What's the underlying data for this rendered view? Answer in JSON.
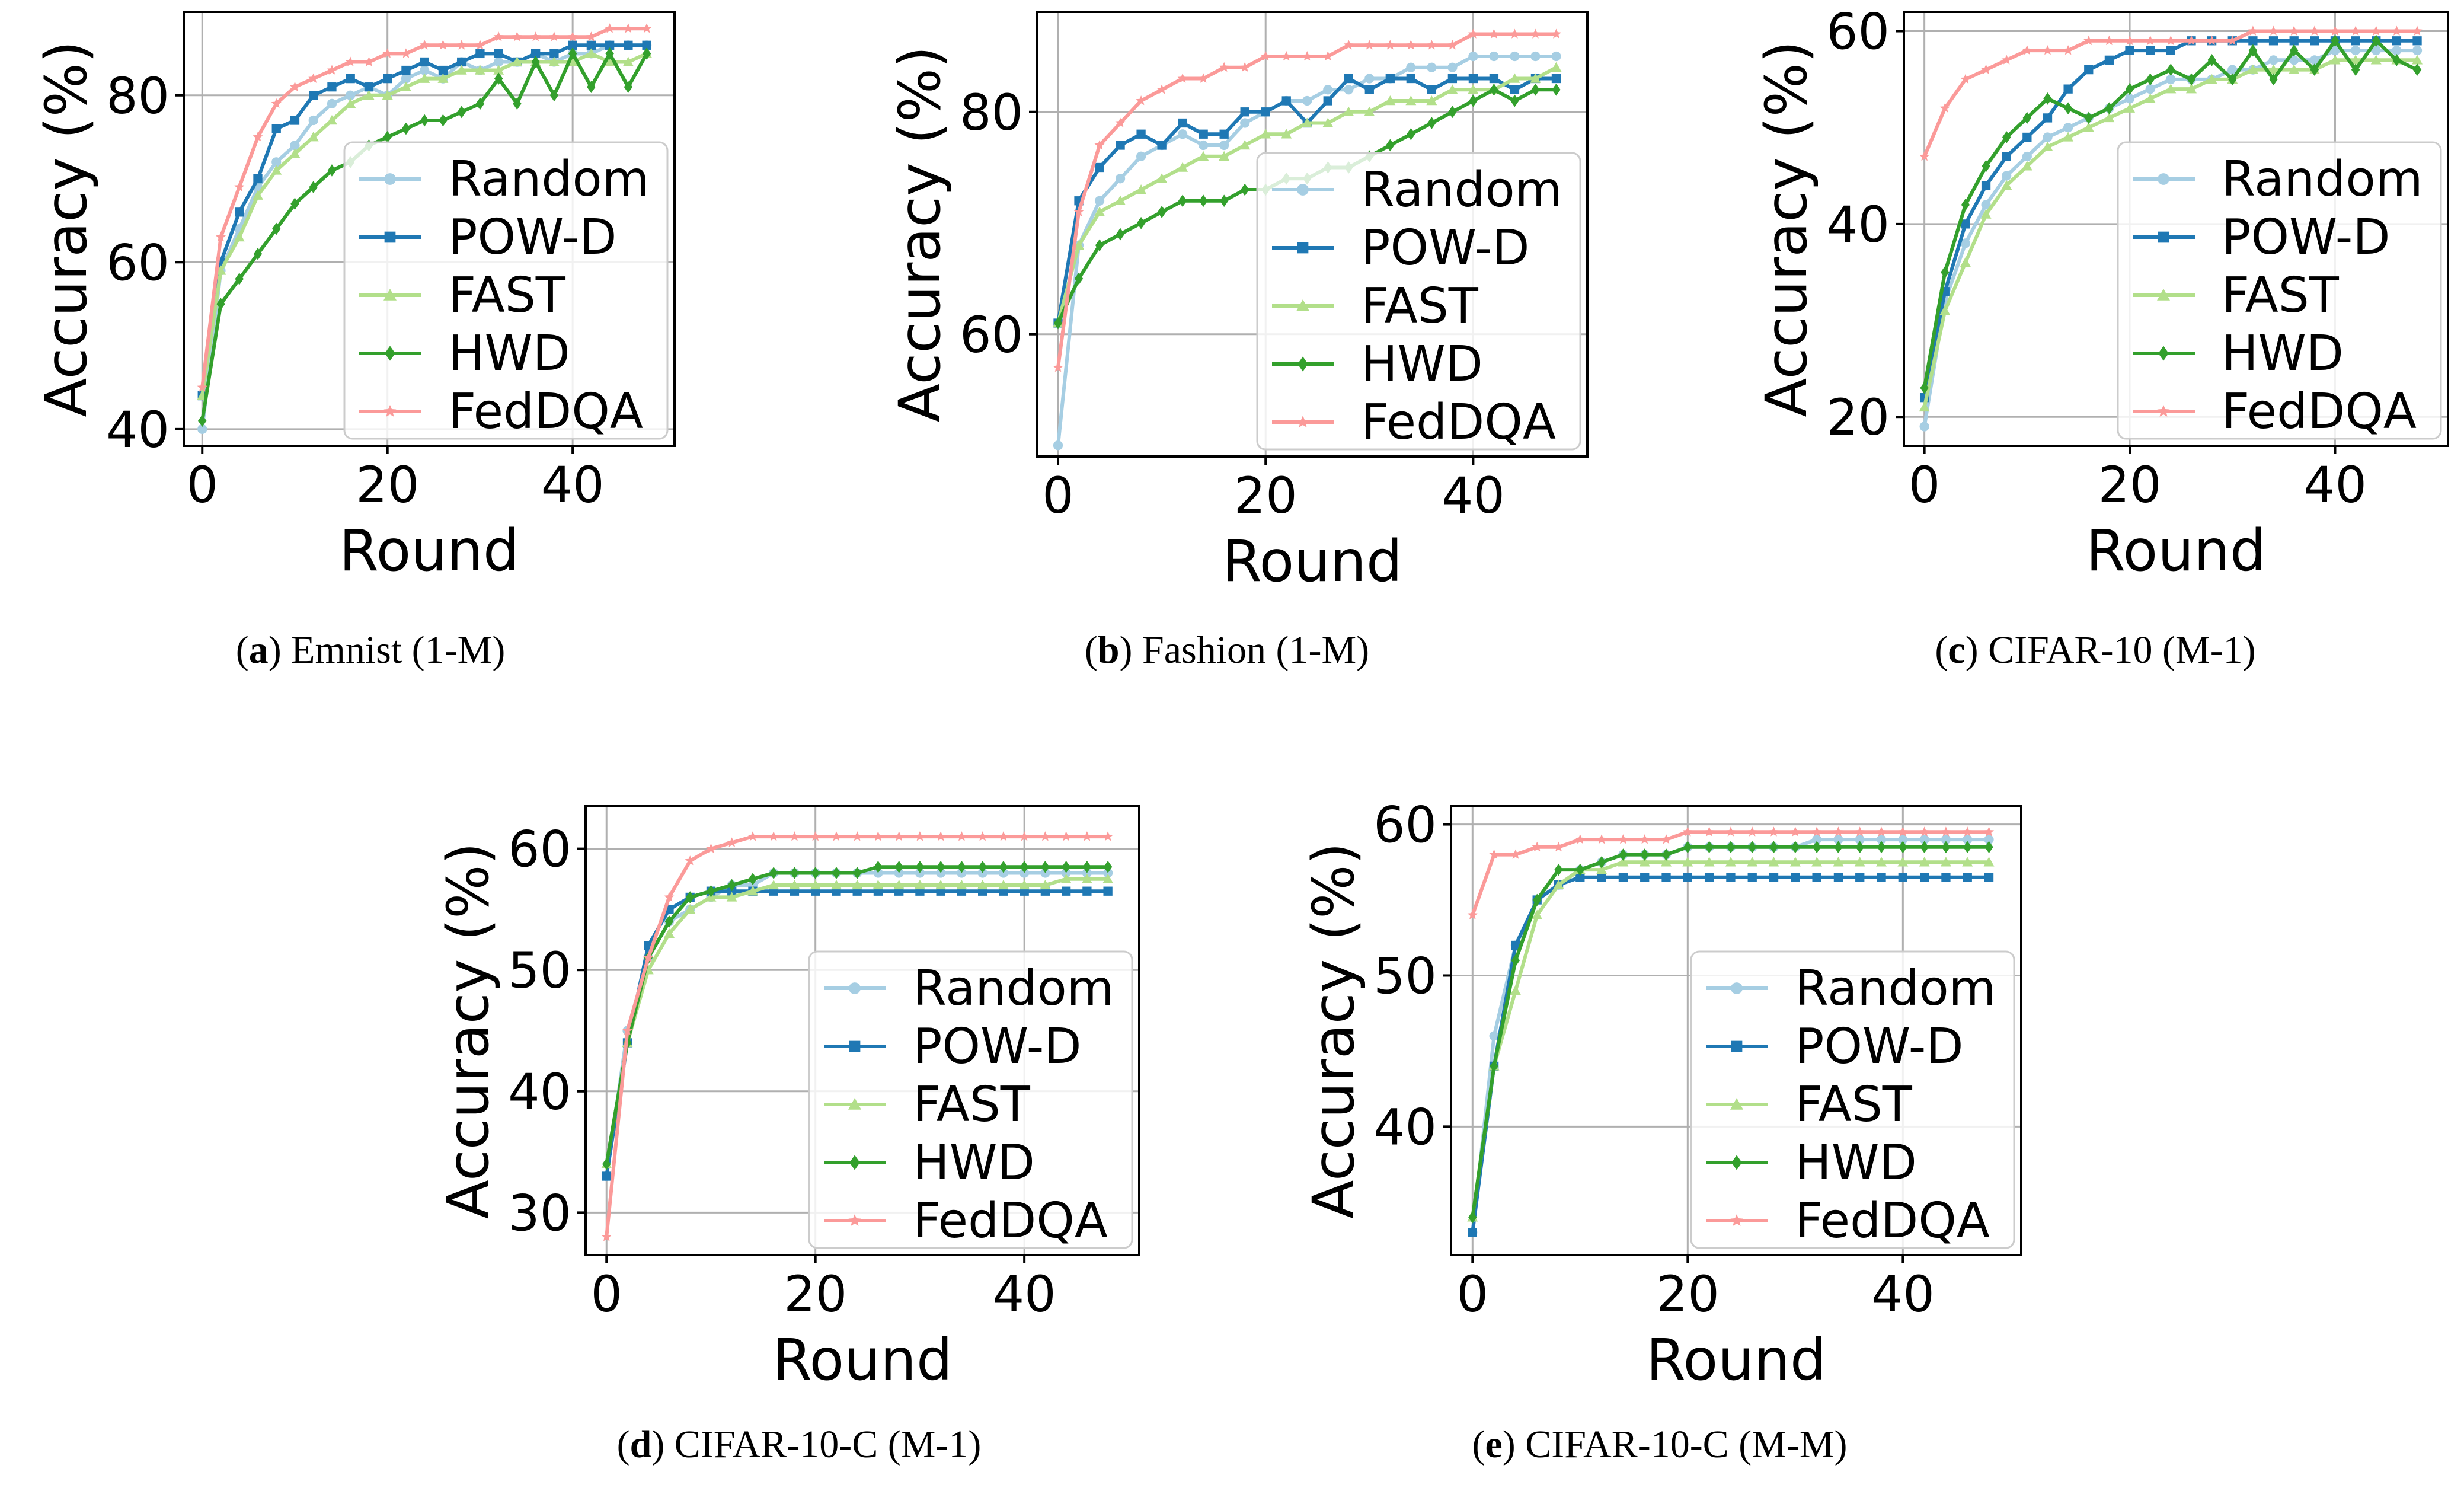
{
  "figure": {
    "colors": {
      "Random": "#a6cee3",
      "POW-D": "#1f78b4",
      "FAST": "#b2df8a",
      "HWD": "#33a02c",
      "FedDQA": "#fb9a99"
    }
  },
  "chart_data": [
    {
      "type": "line",
      "caption_letter": "a",
      "caption_text": "Emnist (1-M)",
      "xlabel": "Round",
      "ylabel": "Accuracy (%)",
      "xlim": [
        -2,
        51
      ],
      "ylim": [
        38,
        90
      ],
      "xticks": [
        0,
        20,
        40
      ],
      "yticks": [
        40,
        60,
        80
      ],
      "x": [
        0,
        2,
        4,
        6,
        8,
        10,
        12,
        14,
        16,
        18,
        20,
        22,
        24,
        26,
        28,
        30,
        32,
        34,
        36,
        38,
        40,
        42,
        44,
        46,
        48
      ],
      "series": [
        {
          "name": "Random",
          "marker": "circle",
          "values": [
            40,
            59,
            64,
            69,
            72,
            74,
            77,
            79,
            80,
            81,
            80,
            82,
            83,
            82,
            84,
            83,
            84,
            84,
            85,
            84,
            85,
            85,
            86,
            86,
            86
          ]
        },
        {
          "name": "POW-D",
          "marker": "square",
          "values": [
            44,
            60,
            66,
            70,
            76,
            77,
            80,
            81,
            82,
            81,
            82,
            83,
            84,
            83,
            84,
            85,
            85,
            84,
            85,
            85,
            86,
            86,
            86,
            86,
            86
          ]
        },
        {
          "name": "FAST",
          "marker": "triangle",
          "values": [
            44,
            59,
            63,
            68,
            71,
            73,
            75,
            77,
            79,
            80,
            80,
            81,
            82,
            82,
            83,
            83,
            83,
            84,
            84,
            84,
            84,
            85,
            84,
            84,
            85
          ]
        },
        {
          "name": "HWD",
          "marker": "diamond",
          "values": [
            41,
            55,
            58,
            61,
            64,
            67,
            69,
            71,
            72,
            74,
            75,
            76,
            77,
            77,
            78,
            79,
            82,
            79,
            84,
            80,
            85,
            81,
            85,
            81,
            85
          ]
        },
        {
          "name": "FedDQA",
          "marker": "star",
          "values": [
            45,
            63,
            69,
            75,
            79,
            81,
            82,
            83,
            84,
            84,
            85,
            85,
            86,
            86,
            86,
            86,
            87,
            87,
            87,
            87,
            87,
            87,
            88,
            88,
            88
          ]
        }
      ]
    },
    {
      "type": "line",
      "caption_letter": "b",
      "caption_text": "Fashion (1-M)",
      "xlabel": "Round",
      "ylabel": "Accuracy (%)",
      "xlim": [
        -2,
        51
      ],
      "ylim": [
        49,
        89
      ],
      "xticks": [
        0,
        20,
        40
      ],
      "yticks": [
        60,
        80
      ],
      "x": [
        0,
        2,
        4,
        6,
        8,
        10,
        12,
        14,
        16,
        18,
        20,
        22,
        24,
        26,
        28,
        30,
        32,
        34,
        36,
        38,
        40,
        42,
        44,
        46,
        48
      ],
      "series": [
        {
          "name": "Random",
          "marker": "circle",
          "values": [
            50,
            68,
            72,
            74,
            76,
            77,
            78,
            77,
            77,
            79,
            80,
            81,
            81,
            82,
            82,
            83,
            83,
            84,
            84,
            84,
            85,
            85,
            85,
            85,
            85
          ]
        },
        {
          "name": "POW-D",
          "marker": "square",
          "values": [
            61,
            72,
            75,
            77,
            78,
            77,
            79,
            78,
            78,
            80,
            80,
            81,
            79,
            81,
            83,
            82,
            83,
            83,
            82,
            83,
            83,
            83,
            82,
            83,
            83
          ]
        },
        {
          "name": "FAST",
          "marker": "triangle",
          "values": [
            61,
            68,
            71,
            72,
            73,
            74,
            75,
            76,
            76,
            77,
            78,
            78,
            79,
            79,
            80,
            80,
            81,
            81,
            81,
            82,
            82,
            82,
            83,
            83,
            84
          ]
        },
        {
          "name": "HWD",
          "marker": "diamond",
          "values": [
            61,
            65,
            68,
            69,
            70,
            71,
            72,
            72,
            72,
            73,
            73,
            74,
            74,
            75,
            75,
            76,
            77,
            78,
            79,
            80,
            81,
            82,
            81,
            82,
            82
          ]
        },
        {
          "name": "FedDQA",
          "marker": "star",
          "values": [
            57,
            71,
            77,
            79,
            81,
            82,
            83,
            83,
            84,
            84,
            85,
            85,
            85,
            85,
            86,
            86,
            86,
            86,
            86,
            86,
            87,
            87,
            87,
            87,
            87
          ]
        }
      ]
    },
    {
      "type": "line",
      "caption_letter": "c",
      "caption_text": "CIFAR-10 (M-1)",
      "xlabel": "Round",
      "ylabel": "Accuracy (%)",
      "xlim": [
        -2,
        51
      ],
      "ylim": [
        17,
        62
      ],
      "xticks": [
        0,
        20,
        40
      ],
      "yticks": [
        20,
        40,
        60
      ],
      "x": [
        0,
        2,
        4,
        6,
        8,
        10,
        12,
        14,
        16,
        18,
        20,
        22,
        24,
        26,
        28,
        30,
        32,
        34,
        36,
        38,
        40,
        42,
        44,
        46,
        48
      ],
      "series": [
        {
          "name": "Random",
          "marker": "circle",
          "values": [
            19,
            32,
            38,
            42,
            45,
            47,
            49,
            50,
            51,
            52,
            53,
            54,
            55,
            55,
            55,
            56,
            56,
            57,
            57,
            57,
            58,
            58,
            58,
            58,
            58
          ]
        },
        {
          "name": "POW-D",
          "marker": "square",
          "values": [
            22,
            33,
            40,
            44,
            47,
            49,
            51,
            54,
            56,
            57,
            58,
            58,
            58,
            59,
            59,
            59,
            59,
            59,
            59,
            59,
            59,
            59,
            59,
            59,
            59
          ]
        },
        {
          "name": "FAST",
          "marker": "triangle",
          "values": [
            21,
            31,
            36,
            41,
            44,
            46,
            48,
            49,
            50,
            51,
            52,
            53,
            54,
            54,
            55,
            55,
            56,
            56,
            56,
            56,
            57,
            57,
            57,
            57,
            57
          ]
        },
        {
          "name": "HWD",
          "marker": "diamond",
          "values": [
            23,
            35,
            42,
            46,
            49,
            51,
            53,
            52,
            51,
            52,
            54,
            55,
            56,
            55,
            57,
            55,
            58,
            55,
            58,
            56,
            59,
            56,
            59,
            57,
            56
          ]
        },
        {
          "name": "FedDQA",
          "marker": "star",
          "values": [
            47,
            52,
            55,
            56,
            57,
            58,
            58,
            58,
            59,
            59,
            59,
            59,
            59,
            59,
            59,
            59,
            60,
            60,
            60,
            60,
            60,
            60,
            60,
            60,
            60
          ]
        }
      ]
    },
    {
      "type": "line",
      "caption_letter": "d",
      "caption_text": "CIFAR-10-C (M-1)",
      "xlabel": "Round",
      "ylabel": "Accuracy (%)",
      "xlim": [
        -2,
        51
      ],
      "ylim": [
        26.5,
        63.5
      ],
      "xticks": [
        0,
        20,
        40
      ],
      "yticks": [
        30,
        40,
        50,
        60
      ],
      "x": [
        0,
        2,
        4,
        6,
        8,
        10,
        12,
        14,
        16,
        18,
        20,
        22,
        24,
        26,
        28,
        30,
        32,
        34,
        36,
        38,
        40,
        42,
        44,
        46,
        48
      ],
      "series": [
        {
          "name": "Random",
          "marker": "circle",
          "values": [
            33,
            45,
            51,
            54,
            55,
            56,
            57,
            57,
            58,
            58,
            58,
            58,
            58,
            58,
            58,
            58,
            58,
            58,
            58,
            58,
            58,
            58,
            58,
            58,
            58
          ]
        },
        {
          "name": "POW-D",
          "marker": "square",
          "values": [
            33,
            44,
            52,
            55,
            56,
            56.5,
            56.5,
            56.5,
            56.5,
            56.5,
            56.5,
            56.5,
            56.5,
            56.5,
            56.5,
            56.5,
            56.5,
            56.5,
            56.5,
            56.5,
            56.5,
            56.5,
            56.5,
            56.5,
            56.5
          ]
        },
        {
          "name": "FAST",
          "marker": "triangle",
          "values": [
            34,
            44,
            50,
            53,
            55,
            56,
            56,
            56.5,
            57,
            57,
            57,
            57,
            57,
            57,
            57,
            57,
            57,
            57,
            57,
            57,
            57,
            57,
            57.5,
            57.5,
            57.5
          ]
        },
        {
          "name": "HWD",
          "marker": "diamond",
          "values": [
            34,
            44,
            51,
            54,
            56,
            56.5,
            57,
            57.5,
            58,
            58,
            58,
            58,
            58,
            58.5,
            58.5,
            58.5,
            58.5,
            58.5,
            58.5,
            58.5,
            58.5,
            58.5,
            58.5,
            58.5,
            58.5
          ]
        },
        {
          "name": "FedDQA",
          "marker": "star",
          "values": [
            28,
            45,
            51,
            56,
            59,
            60,
            60.5,
            61,
            61,
            61,
            61,
            61,
            61,
            61,
            61,
            61,
            61,
            61,
            61,
            61,
            61,
            61,
            61,
            61,
            61
          ]
        }
      ]
    },
    {
      "type": "line",
      "caption_letter": "e",
      "caption_text": "CIFAR-10-C (M-M)",
      "xlabel": "Round",
      "ylabel": "Accuracy (%)",
      "xlim": [
        -2,
        51
      ],
      "ylim": [
        31.5,
        61.2
      ],
      "xticks": [
        0,
        20,
        40
      ],
      "yticks": [
        40,
        50,
        60
      ],
      "x": [
        0,
        2,
        4,
        6,
        8,
        10,
        12,
        14,
        16,
        18,
        20,
        22,
        24,
        26,
        28,
        30,
        32,
        34,
        36,
        38,
        40,
        42,
        44,
        46,
        48
      ],
      "series": [
        {
          "name": "Random",
          "marker": "circle",
          "values": [
            33,
            46,
            52,
            55,
            56,
            57,
            57.5,
            58,
            58,
            58,
            58.5,
            58.5,
            58.5,
            58.5,
            58.5,
            58.5,
            59,
            59,
            59,
            59,
            59,
            59,
            59,
            59,
            59
          ]
        },
        {
          "name": "POW-D",
          "marker": "square",
          "values": [
            33,
            44,
            52,
            55,
            56,
            56.5,
            56.5,
            56.5,
            56.5,
            56.5,
            56.5,
            56.5,
            56.5,
            56.5,
            56.5,
            56.5,
            56.5,
            56.5,
            56.5,
            56.5,
            56.5,
            56.5,
            56.5,
            56.5,
            56.5
          ]
        },
        {
          "name": "FAST",
          "marker": "triangle",
          "values": [
            34,
            44,
            49,
            54,
            56,
            57,
            57,
            57.5,
            57.5,
            57.5,
            57.5,
            57.5,
            57.5,
            57.5,
            57.5,
            57.5,
            57.5,
            57.5,
            57.5,
            57.5,
            57.5,
            57.5,
            57.5,
            57.5,
            57.5
          ]
        },
        {
          "name": "HWD",
          "marker": "diamond",
          "values": [
            34,
            44,
            51,
            55,
            57,
            57,
            57.5,
            58,
            58,
            58,
            58.5,
            58.5,
            58.5,
            58.5,
            58.5,
            58.5,
            58.5,
            58.5,
            58.5,
            58.5,
            58.5,
            58.5,
            58.5,
            58.5,
            58.5
          ]
        },
        {
          "name": "FedDQA",
          "marker": "star",
          "values": [
            54,
            58,
            58,
            58.5,
            58.5,
            59,
            59,
            59,
            59,
            59,
            59.5,
            59.5,
            59.5,
            59.5,
            59.5,
            59.5,
            59.5,
            59.5,
            59.5,
            59.5,
            59.5,
            59.5,
            59.5,
            59.5,
            59.5
          ]
        }
      ]
    }
  ]
}
